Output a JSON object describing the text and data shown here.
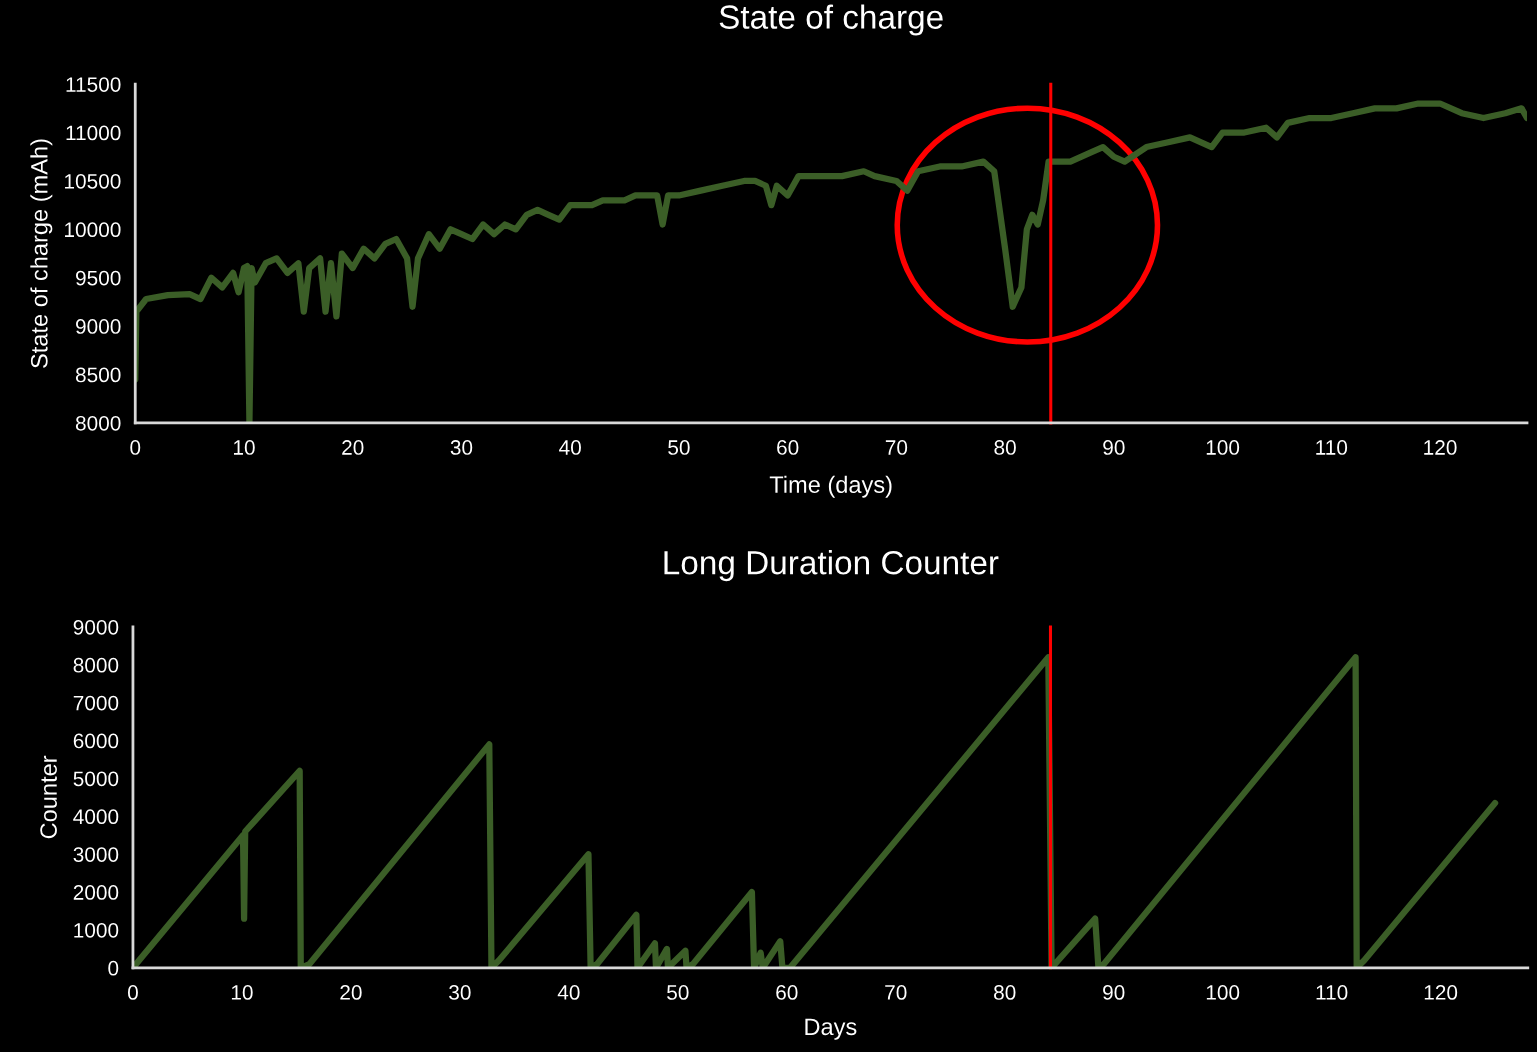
{
  "chart_data": [
    {
      "type": "line",
      "title": "State of charge",
      "xlabel": "Time (days)",
      "ylabel": "State of charge (mAh)",
      "xlim": [
        0,
        128
      ],
      "xticks": [
        0,
        10,
        20,
        30,
        40,
        50,
        60,
        70,
        80,
        90,
        100,
        110,
        120
      ],
      "ylim": [
        8000,
        11500
      ],
      "yticks": [
        8000,
        8500,
        9000,
        9500,
        10000,
        10500,
        11000,
        11500
      ],
      "grid": false,
      "marker": "none",
      "line_style": "solid",
      "ref_lines": [
        {
          "axis": "x",
          "value": 84.2,
          "label": null,
          "color": "#ff0000"
        }
      ],
      "series": [
        {
          "color": "#3b5e27",
          "x": [
            0,
            0.1,
            1,
            3,
            5,
            6,
            7,
            8,
            9,
            9.5,
            10,
            10.3,
            10.5,
            10.7,
            11,
            12,
            13,
            14,
            15,
            15.5,
            16,
            17,
            17.5,
            18,
            18.5,
            19,
            20,
            21,
            22,
            23,
            24,
            25,
            25.5,
            26,
            27,
            28,
            29,
            30,
            31,
            32,
            33,
            34,
            35,
            36,
            37,
            38,
            39,
            40,
            42,
            43,
            45,
            46,
            47,
            48,
            48.5,
            49,
            50,
            52,
            54,
            56,
            57,
            58,
            58.5,
            59,
            60,
            61,
            63,
            65,
            67,
            68,
            70,
            71,
            72,
            74,
            76,
            78,
            79,
            80,
            80.7,
            81.5,
            82,
            82.5,
            83,
            83.5,
            84,
            86,
            88,
            89,
            90,
            91,
            93,
            95,
            97,
            99,
            100,
            102,
            104,
            105,
            106,
            108,
            110,
            112,
            114,
            116,
            118,
            120,
            122,
            124,
            126,
            127.5,
            128
          ],
          "values": [
            8450,
            9150,
            9280,
            9320,
            9330,
            9280,
            9500,
            9400,
            9550,
            9350,
            9600,
            9620,
            8000,
            9600,
            9450,
            9650,
            9700,
            9550,
            9650,
            9150,
            9600,
            9700,
            9150,
            9650,
            9100,
            9750,
            9600,
            9800,
            9700,
            9850,
            9900,
            9700,
            9200,
            9700,
            9950,
            9800,
            10000,
            9950,
            9900,
            10050,
            9950,
            10050,
            10000,
            10150,
            10200,
            10150,
            10100,
            10250,
            10250,
            10300,
            10300,
            10350,
            10350,
            10350,
            10050,
            10350,
            10350,
            10400,
            10450,
            10500,
            10500,
            10450,
            10250,
            10450,
            10350,
            10550,
            10550,
            10550,
            10600,
            10550,
            10500,
            10400,
            10600,
            10650,
            10650,
            10700,
            10600,
            9800,
            9200,
            9400,
            10000,
            10150,
            10050,
            10300,
            10700,
            10700,
            10800,
            10850,
            10750,
            10700,
            10850,
            10900,
            10950,
            10850,
            11000,
            11000,
            11050,
            10950,
            11100,
            11150,
            11150,
            11200,
            11250,
            11250,
            11300,
            11300,
            11200,
            11150,
            11200,
            11250,
            11150
          ]
        }
      ]
    },
    {
      "type": "line",
      "title": "Long Duration Counter",
      "xlabel": "Days",
      "ylabel": "Counter",
      "xlim": [
        0,
        128
      ],
      "xticks": [
        0,
        10,
        20,
        30,
        40,
        50,
        60,
        70,
        80,
        90,
        100,
        110,
        120
      ],
      "ylim": [
        0,
        9000
      ],
      "yticks": [
        0,
        1000,
        2000,
        3000,
        4000,
        5000,
        6000,
        7000,
        8000,
        9000
      ],
      "grid": false,
      "marker": "none",
      "line_style": "solid",
      "ref_lines": [
        {
          "axis": "x",
          "value": 84.2,
          "label": null,
          "color": "#ff0000"
        }
      ],
      "series": [
        {
          "color": "#3b5e27",
          "x": [
            0,
            10.1,
            10.2,
            10.3,
            15.3,
            15.4,
            16.2,
            32.7,
            32.9,
            33.6,
            41.8,
            42.0,
            42.6,
            46.2,
            46.3,
            47.9,
            48.0,
            49.0,
            49.1,
            50.7,
            50.8,
            51.4,
            56.8,
            57.0,
            57.6,
            57.8,
            59.4,
            59.6,
            60.3,
            84.0,
            84.3,
            88.3,
            88.6,
            89.1,
            112.2,
            112.3,
            113.0,
            125.0
          ],
          "values": [
            0,
            3500,
            1300,
            3600,
            5200,
            0,
            100,
            5900,
            0,
            200,
            3000,
            0,
            100,
            1400,
            0,
            650,
            0,
            500,
            0,
            450,
            0,
            100,
            2000,
            0,
            400,
            0,
            700,
            0,
            0,
            8200,
            0,
            1300,
            0,
            100,
            8200,
            0,
            200,
            4350
          ]
        }
      ]
    }
  ]
}
